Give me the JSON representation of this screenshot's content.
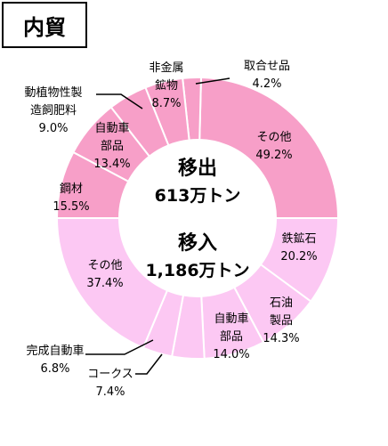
{
  "header": {
    "title": "内貿"
  },
  "chart_data": {
    "type": "pie",
    "variant": "double-half-donut",
    "title": "内貿",
    "series": [
      {
        "name": "移出",
        "center_label": "移出",
        "total_label": "613万トン",
        "color": "#f79fc8",
        "start_at": "right-horizontal",
        "direction": "counterclockwise-over-top",
        "slices": [
          {
            "label": "その他",
            "value": 49.2
          },
          {
            "label": "取合せ品",
            "value": 4.2
          },
          {
            "label": "非金属鉱物",
            "value": 8.7
          },
          {
            "label": "動植物性製造飼肥料",
            "value": 9.0
          },
          {
            "label": "自動車部品",
            "value": 13.4
          },
          {
            "label": "鋼材",
            "value": 15.5
          }
        ]
      },
      {
        "name": "移入",
        "center_label": "移入",
        "total_label": "1,186万トン",
        "color": "#fcc8f3",
        "start_at": "right-horizontal",
        "direction": "clockwise-over-bottom",
        "slices": [
          {
            "label": "鉄鉱石",
            "value": 20.2
          },
          {
            "label": "石油製品",
            "value": 14.3
          },
          {
            "label": "自動車部品",
            "value": 14.0
          },
          {
            "label": "コークス",
            "value": 7.4
          },
          {
            "label": "完成自動車",
            "value": 6.8
          },
          {
            "label": "その他",
            "value": 37.4
          }
        ]
      }
    ]
  },
  "labels": [
    {
      "lines": [
        "その他"
      ],
      "pct": "49.2%"
    },
    {
      "lines": [
        "取合せ品"
      ],
      "pct": "4.2%"
    },
    {
      "lines": [
        "非金属",
        "鉱物"
      ],
      "pct": "8.7%"
    },
    {
      "lines": [
        "動植物性製",
        "造飼肥料"
      ],
      "pct": "9.0%"
    },
    {
      "lines": [
        "自動車",
        "部品"
      ],
      "pct": "13.4%"
    },
    {
      "lines": [
        "鋼材"
      ],
      "pct": "15.5%"
    },
    {
      "lines": [
        "鉄鉱石"
      ],
      "pct": "20.2%"
    },
    {
      "lines": [
        "石油",
        "製品"
      ],
      "pct": "14.3%"
    },
    {
      "lines": [
        "自動車",
        "部品"
      ],
      "pct": "14.0%"
    },
    {
      "lines": [
        "コークス"
      ],
      "pct": "7.4%"
    },
    {
      "lines": [
        "完成自動車"
      ],
      "pct": "6.8%"
    },
    {
      "lines": [
        "その他"
      ],
      "pct": "37.4%"
    }
  ]
}
